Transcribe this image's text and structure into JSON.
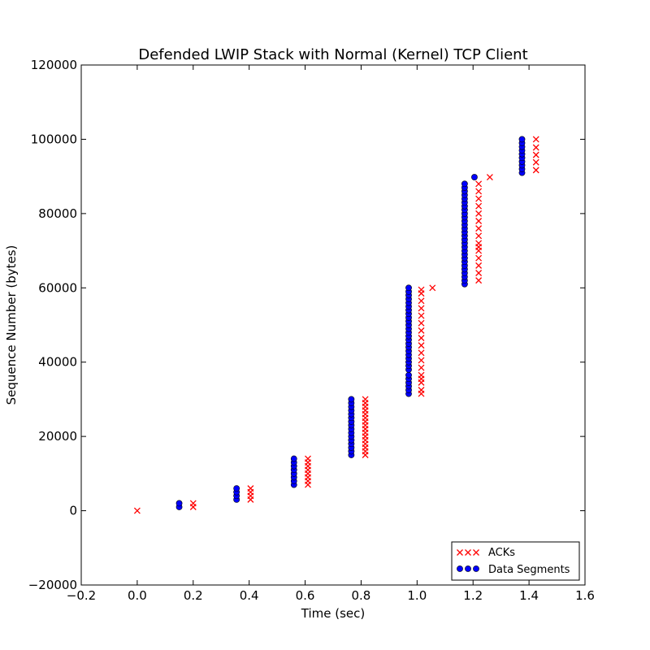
{
  "chart_data": {
    "type": "scatter",
    "title": "Defended LWIP Stack with Normal (Kernel) TCP Client",
    "xlabel": "Time (sec)",
    "ylabel": "Sequence Number (bytes)",
    "xlim": [
      -0.2,
      1.6
    ],
    "ylim": [
      -20000,
      120000
    ],
    "x_ticks": [
      -0.2,
      0.0,
      0.2,
      0.4,
      0.6,
      0.8,
      1.0,
      1.2,
      1.4,
      1.6
    ],
    "x_tick_labels": [
      "−0.2",
      "0.0",
      "0.2",
      "0.4",
      "0.6",
      "0.8",
      "1.0",
      "1.2",
      "1.4",
      "1.6"
    ],
    "y_ticks": [
      -20000,
      0,
      20000,
      40000,
      60000,
      80000,
      100000,
      120000
    ],
    "y_tick_labels": [
      "−20000",
      "0",
      "20000",
      "40000",
      "60000",
      "80000",
      "100000",
      "120000"
    ],
    "grid": false,
    "legend_position": "bottom-right",
    "series": [
      {
        "name": "ACKs",
        "marker": "x",
        "color": "#ff0000",
        "points": [
          [
            0.0,
            0
          ],
          [
            0.2,
            1000
          ],
          [
            0.2,
            2000
          ],
          [
            0.405,
            3000
          ],
          [
            0.405,
            4000
          ],
          [
            0.405,
            5000
          ],
          [
            0.405,
            6000
          ],
          [
            0.61,
            7000
          ],
          [
            0.61,
            8000
          ],
          [
            0.61,
            9000
          ],
          [
            0.61,
            10000
          ],
          [
            0.61,
            11000
          ],
          [
            0.61,
            12000
          ],
          [
            0.61,
            13000
          ],
          [
            0.61,
            14000
          ],
          [
            0.815,
            15000
          ],
          [
            0.815,
            16000
          ],
          [
            0.815,
            17000
          ],
          [
            0.815,
            18000
          ],
          [
            0.815,
            19000
          ],
          [
            0.815,
            20000
          ],
          [
            0.815,
            21000
          ],
          [
            0.815,
            22000
          ],
          [
            0.815,
            23000
          ],
          [
            0.815,
            24000
          ],
          [
            0.815,
            25000
          ],
          [
            0.815,
            26000
          ],
          [
            0.815,
            27000
          ],
          [
            0.815,
            28000
          ],
          [
            0.815,
            29000
          ],
          [
            0.815,
            30000
          ],
          [
            1.015,
            31500
          ],
          [
            1.015,
            32500
          ],
          [
            1.015,
            34500
          ],
          [
            1.015,
            35500
          ],
          [
            1.015,
            36500
          ],
          [
            1.015,
            38500
          ],
          [
            1.015,
            40500
          ],
          [
            1.015,
            42500
          ],
          [
            1.015,
            44500
          ],
          [
            1.015,
            46500
          ],
          [
            1.015,
            48500
          ],
          [
            1.015,
            50500
          ],
          [
            1.015,
            52500
          ],
          [
            1.015,
            54500
          ],
          [
            1.015,
            56500
          ],
          [
            1.015,
            58500
          ],
          [
            1.015,
            59500
          ],
          [
            1.055,
            60000
          ],
          [
            1.22,
            62000
          ],
          [
            1.22,
            64000
          ],
          [
            1.22,
            66000
          ],
          [
            1.22,
            68000
          ],
          [
            1.22,
            70000
          ],
          [
            1.22,
            71000
          ],
          [
            1.22,
            72000
          ],
          [
            1.22,
            74000
          ],
          [
            1.22,
            76000
          ],
          [
            1.22,
            78000
          ],
          [
            1.22,
            80000
          ],
          [
            1.22,
            82000
          ],
          [
            1.22,
            84000
          ],
          [
            1.22,
            86000
          ],
          [
            1.22,
            88000
          ],
          [
            1.26,
            89800
          ],
          [
            1.425,
            91700
          ],
          [
            1.425,
            93800
          ],
          [
            1.425,
            95800
          ],
          [
            1.425,
            97800
          ],
          [
            1.425,
            100000
          ]
        ]
      },
      {
        "name": "Data Segments",
        "marker": "o",
        "color": "#0000ff",
        "points": [
          [
            0.15,
            1000
          ],
          [
            0.15,
            2000
          ],
          [
            0.355,
            3000
          ],
          [
            0.355,
            4000
          ],
          [
            0.355,
            5000
          ],
          [
            0.355,
            6000
          ],
          [
            0.56,
            7000
          ],
          [
            0.56,
            8000
          ],
          [
            0.56,
            9000
          ],
          [
            0.56,
            10000
          ],
          [
            0.56,
            11000
          ],
          [
            0.56,
            12000
          ],
          [
            0.56,
            13000
          ],
          [
            0.56,
            14000
          ],
          [
            0.765,
            15000
          ],
          [
            0.765,
            16000
          ],
          [
            0.765,
            17000
          ],
          [
            0.765,
            18000
          ],
          [
            0.765,
            19000
          ],
          [
            0.765,
            20000
          ],
          [
            0.765,
            21000
          ],
          [
            0.765,
            22000
          ],
          [
            0.765,
            23000
          ],
          [
            0.765,
            24000
          ],
          [
            0.765,
            25000
          ],
          [
            0.765,
            26000
          ],
          [
            0.765,
            27000
          ],
          [
            0.765,
            28000
          ],
          [
            0.765,
            29000
          ],
          [
            0.765,
            30000
          ],
          [
            0.97,
            31500
          ],
          [
            0.97,
            32500
          ],
          [
            0.97,
            33500
          ],
          [
            0.97,
            34500
          ],
          [
            0.97,
            35500
          ],
          [
            0.97,
            36500
          ],
          [
            0.97,
            38000
          ],
          [
            0.97,
            39000
          ],
          [
            0.97,
            40000
          ],
          [
            0.97,
            41000
          ],
          [
            0.97,
            42000
          ],
          [
            0.97,
            43000
          ],
          [
            0.97,
            44000
          ],
          [
            0.97,
            45000
          ],
          [
            0.97,
            46000
          ],
          [
            0.97,
            47000
          ],
          [
            0.97,
            48000
          ],
          [
            0.97,
            49000
          ],
          [
            0.97,
            50000
          ],
          [
            0.97,
            51000
          ],
          [
            0.97,
            52000
          ],
          [
            0.97,
            53000
          ],
          [
            0.97,
            54000
          ],
          [
            0.97,
            55000
          ],
          [
            0.97,
            56000
          ],
          [
            0.97,
            57000
          ],
          [
            0.97,
            58000
          ],
          [
            0.97,
            59000
          ],
          [
            0.97,
            60000
          ],
          [
            1.17,
            61000
          ],
          [
            1.17,
            62000
          ],
          [
            1.17,
            63000
          ],
          [
            1.17,
            64000
          ],
          [
            1.17,
            65000
          ],
          [
            1.17,
            66000
          ],
          [
            1.17,
            67000
          ],
          [
            1.17,
            68000
          ],
          [
            1.17,
            69000
          ],
          [
            1.17,
            70000
          ],
          [
            1.17,
            71000
          ],
          [
            1.17,
            72000
          ],
          [
            1.17,
            73000
          ],
          [
            1.17,
            74000
          ],
          [
            1.17,
            75000
          ],
          [
            1.17,
            76000
          ],
          [
            1.17,
            77000
          ],
          [
            1.17,
            78000
          ],
          [
            1.17,
            79000
          ],
          [
            1.17,
            80000
          ],
          [
            1.17,
            81000
          ],
          [
            1.17,
            82000
          ],
          [
            1.17,
            83000
          ],
          [
            1.17,
            84000
          ],
          [
            1.17,
            85000
          ],
          [
            1.17,
            86000
          ],
          [
            1.17,
            87000
          ],
          [
            1.17,
            88000
          ],
          [
            1.205,
            89800
          ],
          [
            1.375,
            91000
          ],
          [
            1.375,
            92000
          ],
          [
            1.375,
            93000
          ],
          [
            1.375,
            94000
          ],
          [
            1.375,
            95000
          ],
          [
            1.375,
            96000
          ],
          [
            1.375,
            97000
          ],
          [
            1.375,
            98000
          ],
          [
            1.375,
            99000
          ],
          [
            1.375,
            100000
          ]
        ]
      }
    ]
  }
}
